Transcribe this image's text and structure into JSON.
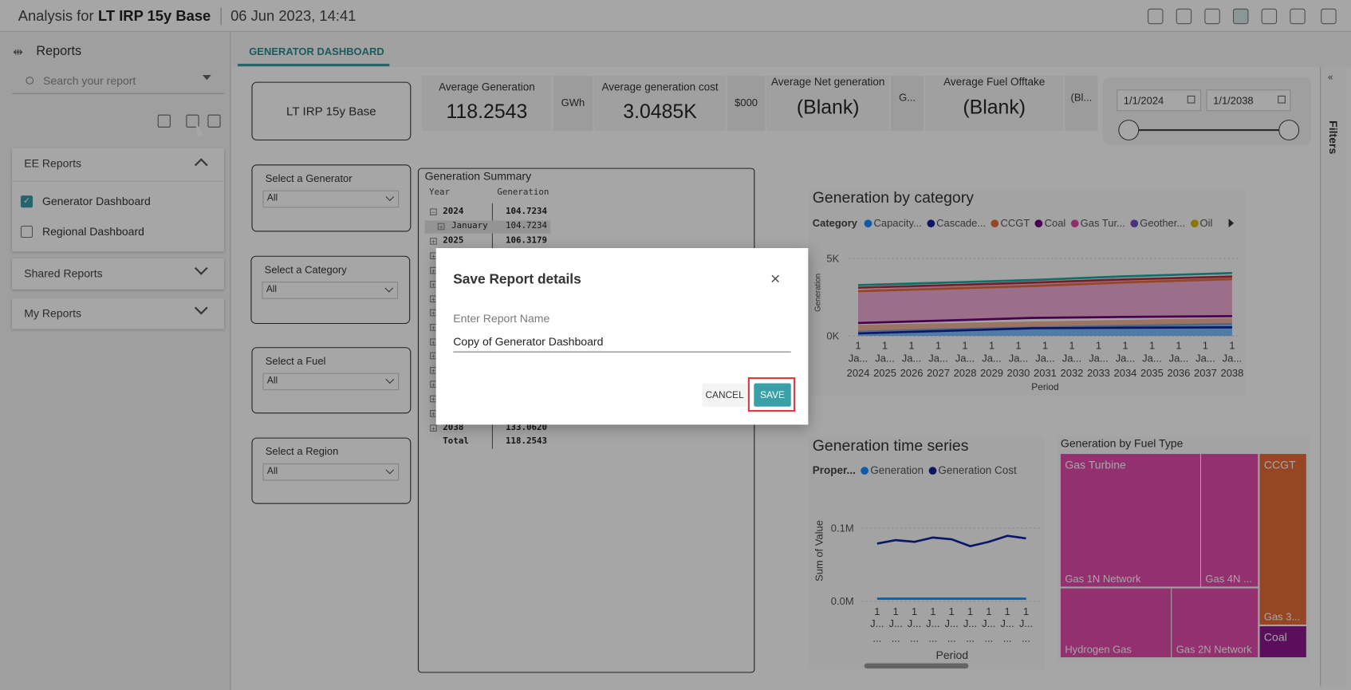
{
  "header": {
    "title_prefix": "Analysis for",
    "title_name": "LT IRP 15y Base",
    "datetime": "06 Jun 2023, 14:41"
  },
  "sidebar": {
    "title": "Reports",
    "search_placeholder": "Search your report",
    "sections": [
      {
        "title": "EE Reports",
        "expanded": true,
        "items": [
          {
            "label": "Generator Dashboard",
            "checked": true
          },
          {
            "label": "Regional Dashboard",
            "checked": false
          }
        ]
      },
      {
        "title": "Shared Reports",
        "expanded": false
      },
      {
        "title": "My Reports",
        "expanded": false
      }
    ]
  },
  "tab": "GENERATOR DASHBOARD",
  "filters_pane": "Filters",
  "scenario": "LT IRP 15y Base",
  "kpis": [
    {
      "label": "Average Generation",
      "value": "118.2543",
      "unit": "GWh"
    },
    {
      "label": "Average generation cost",
      "value": "3.0485K",
      "unit": "$000"
    },
    {
      "label": "Average Net generation",
      "value": "(Blank)",
      "unit": "G..."
    },
    {
      "label": "Average Fuel Offtake",
      "value": "(Blank)",
      "unit": "(Bl..."
    }
  ],
  "date_range": {
    "start": "1/1/2024",
    "end": "1/1/2038"
  },
  "slicers": [
    {
      "label": "Select a Generator",
      "value": "All"
    },
    {
      "label": "Select a Category",
      "value": "All"
    },
    {
      "label": "Select a Fuel",
      "value": "All"
    },
    {
      "label": "Select a Region",
      "value": "All"
    }
  ],
  "summary_table": {
    "title": "Generation Summary",
    "columns": [
      "Year",
      "Generation"
    ],
    "rows": [
      {
        "label": "2024",
        "value": "104.7234",
        "expanded": true,
        "children": [
          {
            "label": "January",
            "value": "104.7234"
          }
        ]
      },
      {
        "label": "2025",
        "value": "106.3179",
        "expanded": false
      },
      {
        "label": "2038",
        "value": "133.0620",
        "expanded": false
      }
    ],
    "total": {
      "label": "Total",
      "value": "118.2543"
    }
  },
  "category_chart": {
    "title": "Generation by category",
    "legend_title": "Category",
    "legend": [
      {
        "name": "Capacity...",
        "color": "#118dff"
      },
      {
        "name": "Cascade...",
        "color": "#12239e"
      },
      {
        "name": "CCGT",
        "color": "#e66c37"
      },
      {
        "name": "Coal",
        "color": "#6b007b"
      },
      {
        "name": "Gas Tur...",
        "color": "#e044a7"
      },
      {
        "name": "Geother...",
        "color": "#744ec2"
      },
      {
        "name": "Oil",
        "color": "#d9b300"
      }
    ],
    "y_label": "Generation",
    "yticks": [
      "5K",
      "0K"
    ],
    "x_label": "Period",
    "xticks": [
      {
        "day": "1",
        "month": "Ja...",
        "year": "2024"
      },
      {
        "day": "1",
        "month": "Ja...",
        "year": "2025"
      },
      {
        "day": "1",
        "month": "Ja...",
        "year": "2026"
      },
      {
        "day": "1",
        "month": "Ja...",
        "year": "2027"
      },
      {
        "day": "1",
        "month": "Ja...",
        "year": "2028"
      },
      {
        "day": "1",
        "month": "Ja...",
        "year": "2029"
      },
      {
        "day": "1",
        "month": "Ja...",
        "year": "2030"
      },
      {
        "day": "1",
        "month": "Ja...",
        "year": "2031"
      },
      {
        "day": "1",
        "month": "Ja...",
        "year": "2032"
      },
      {
        "day": "1",
        "month": "Ja...",
        "year": "2033"
      },
      {
        "day": "1",
        "month": "Ja...",
        "year": "2034"
      },
      {
        "day": "1",
        "month": "Ja...",
        "year": "2035"
      },
      {
        "day": "1",
        "month": "Ja...",
        "year": "2036"
      },
      {
        "day": "1",
        "month": "Ja...",
        "year": "2037"
      },
      {
        "day": "1",
        "month": "Ja...",
        "year": "2038"
      }
    ]
  },
  "timeseries_chart": {
    "title": "Generation time series",
    "legend_title": "Proper...",
    "legend": [
      {
        "name": "Generation",
        "color": "#118dff"
      },
      {
        "name": "Generation Cost",
        "color": "#12239e"
      }
    ],
    "y_label": "Sum of Value",
    "yticks": [
      "0.1M",
      "0.0M"
    ],
    "x_label": "Period",
    "xticks": [
      {
        "day": "1",
        "month": "J...",
        "year": "..."
      },
      {
        "day": "1",
        "month": "J...",
        "year": "..."
      },
      {
        "day": "1",
        "month": "J...",
        "year": "..."
      },
      {
        "day": "1",
        "month": "J...",
        "year": "..."
      },
      {
        "day": "1",
        "month": "J...",
        "year": "..."
      },
      {
        "day": "1",
        "month": "J...",
        "year": "..."
      },
      {
        "day": "1",
        "month": "J...",
        "year": "..."
      },
      {
        "day": "1",
        "month": "J...",
        "year": "..."
      },
      {
        "day": "1",
        "month": "J...",
        "year": "..."
      }
    ]
  },
  "treemap": {
    "title": "Generation by Fuel Type",
    "groups": [
      {
        "name": "Gas Turbine",
        "color": "#e24aac",
        "leaves": [
          "Gas 1N Network",
          "Gas 4N ...",
          "Hydrogen Gas",
          "Gas 2N Network"
        ]
      },
      {
        "name": "CCGT",
        "color": "#e66c37",
        "leaves": [
          "Gas 3..."
        ]
      },
      {
        "name": "Coal",
        "color": "#8c168c"
      }
    ]
  },
  "modal": {
    "title": "Save Report details",
    "field_label": "Enter Report Name",
    "field_value": "Copy of Generator Dashboard",
    "cancel": "CANCEL",
    "save": "SAVE"
  }
}
